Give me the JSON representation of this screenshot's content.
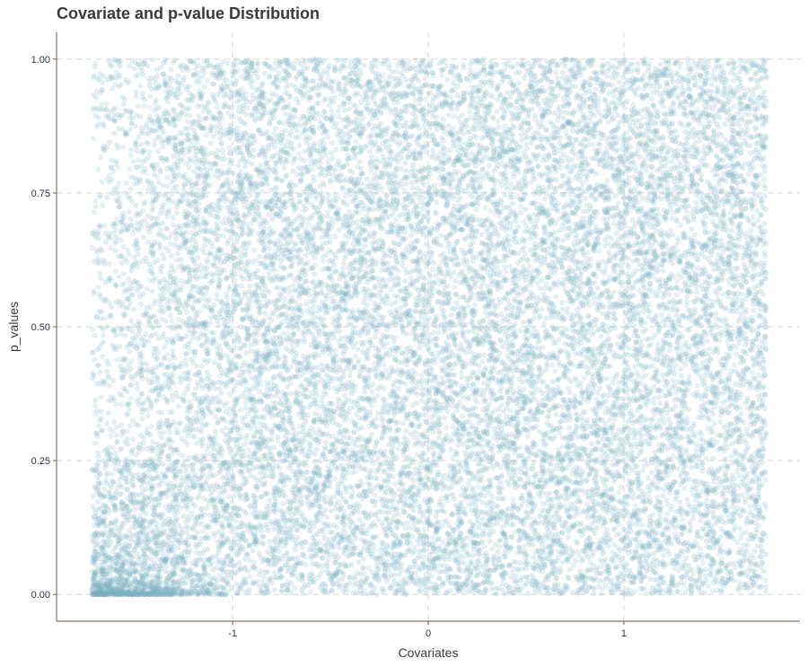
{
  "chart_data": {
    "type": "scatter",
    "title": "Covariate and p-value Distribution",
    "xlabel": "Covariates",
    "ylabel": "p_values",
    "xlim": [
      -1.9,
      1.9
    ],
    "ylim": [
      -0.05,
      1.05
    ],
    "x_ticks": [
      -1,
      0,
      1
    ],
    "x_tick_labels": [
      "-1",
      "0",
      "1"
    ],
    "y_ticks": [
      0,
      0.25,
      0.5,
      0.75,
      1
    ],
    "y_tick_labels": [
      "0.00",
      "0.25",
      "0.50",
      "0.75",
      "1.00"
    ],
    "grid": true,
    "point_color": "#7fb3c5",
    "point_alpha": 0.2,
    "x_range_of_points": [
      -1.72,
      1.73
    ],
    "y_range_of_points": [
      0.0,
      1.0
    ],
    "n_points_approx": 20000,
    "distribution_note": "uniform p-values across covariate range with dense cluster of small p-values near covariate -1.7"
  }
}
